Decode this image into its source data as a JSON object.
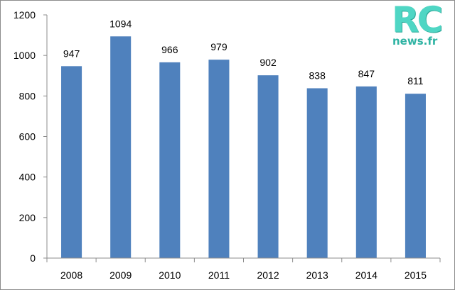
{
  "logo": {
    "main_text": "RC",
    "sub_text": "news.fr",
    "color": "#4fd6c4"
  },
  "chart_data": {
    "type": "bar",
    "categories": [
      "2008",
      "2009",
      "2010",
      "2011",
      "2012",
      "2013",
      "2014",
      "2015"
    ],
    "values": [
      947,
      1094,
      966,
      979,
      902,
      838,
      847,
      811
    ],
    "data_labels": [
      "947",
      "1094",
      "966",
      "979",
      "902",
      "838",
      "847",
      "811"
    ],
    "title": "",
    "xlabel": "",
    "ylabel": "",
    "ylim": [
      0,
      1200
    ],
    "yticks": [
      0,
      200,
      400,
      600,
      800,
      1000,
      1200
    ],
    "ytick_labels": [
      "0",
      "200",
      "400",
      "600",
      "800",
      "1000",
      "1200"
    ],
    "grid": false,
    "legend": "none",
    "bar_color": "#4f81bd"
  }
}
